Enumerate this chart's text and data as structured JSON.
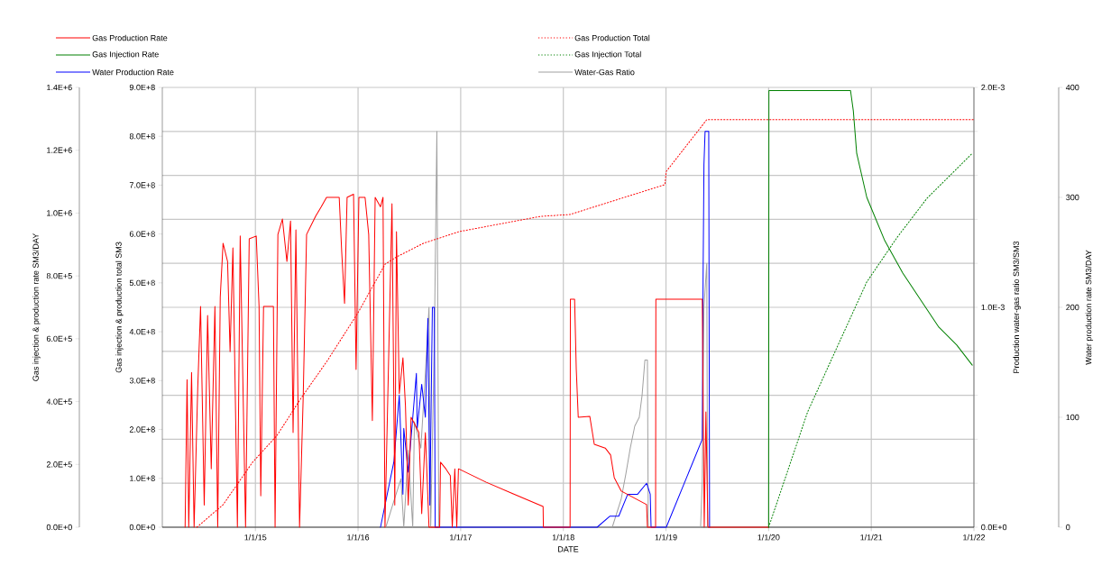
{
  "chart_data": [
    {
      "type": "line",
      "xlabel": "DATE",
      "ylabel": "Gas injection & production rate  SM3/DAY",
      "y2label": "Gas injection & production total  SM3",
      "xlim": [
        "2014-02-04",
        "2022-01-01"
      ],
      "xticks": [
        {
          "value": "2015-01-01",
          "label": "1/1/15"
        },
        {
          "value": "2016-01-01",
          "label": "1/1/16"
        },
        {
          "value": "2017-01-01",
          "label": "1/1/17"
        },
        {
          "value": "2018-01-01",
          "label": "1/1/18"
        },
        {
          "value": "2019-01-01",
          "label": "1/1/19"
        },
        {
          "value": "2020-01-01",
          "label": "1/1/20"
        },
        {
          "value": "2021-01-01",
          "label": "1/1/21"
        },
        {
          "value": "2022-01-01",
          "label": "1/1/22"
        }
      ],
      "ylim": [
        0,
        1400000
      ],
      "yticks": [
        {
          "value": 0,
          "label": "0.0E+0"
        },
        {
          "value": 200000,
          "label": "2.0E+5"
        },
        {
          "value": 400000,
          "label": "4.0E+5"
        },
        {
          "value": 600000,
          "label": "6.0E+5"
        },
        {
          "value": 800000,
          "label": "8.0E+5"
        },
        {
          "value": 1000000,
          "label": "1.0E+6"
        },
        {
          "value": 1200000,
          "label": "1.2E+6"
        },
        {
          "value": 1400000,
          "label": "1.4E+6"
        }
      ],
      "y2lim": [
        0,
        900000000
      ],
      "y2ticks": [
        {
          "value": 0,
          "label": "0.0E+0"
        },
        {
          "value": 100000000,
          "label": "1.0E+8"
        },
        {
          "value": 200000000,
          "label": "2.0E+8"
        },
        {
          "value": 300000000,
          "label": "3.0E+8"
        },
        {
          "value": 400000000,
          "label": "4.0E+8"
        },
        {
          "value": 500000000,
          "label": "5.0E+8"
        },
        {
          "value": 600000000,
          "label": "6.0E+8"
        },
        {
          "value": 700000000,
          "label": "7.0E+8"
        },
        {
          "value": 800000000,
          "label": "8.0E+8"
        },
        {
          "value": 900000000,
          "label": "9.0E+8"
        }
      ],
      "legend": "top",
      "series": [
        {
          "name": "Gas Production Rate",
          "color": "#ff0000",
          "line_style": "solid",
          "x": [
            "2014-04-26",
            "2014-05-03",
            "2014-05-09",
            "2014-05-19",
            "2014-05-28",
            "2014-06-10",
            "2014-06-20",
            "2014-07-03",
            "2014-07-15",
            "2014-07-28",
            "2014-08-10",
            "2014-08-20",
            "2014-08-29",
            "2014-09-08",
            "2014-09-24",
            "2014-10-03",
            "2014-10-13",
            "2014-10-29",
            "2014-11-08",
            "2014-11-27",
            "2014-12-10",
            "2015-01-04",
            "2015-01-14",
            "2015-01-20",
            "2015-01-30",
            "2015-03-06",
            "2015-03-12",
            "2015-03-22",
            "2015-04-07",
            "2015-04-23",
            "2015-05-06",
            "2015-05-15",
            "2015-05-25",
            "2015-06-07",
            "2015-06-20",
            "2015-07-02",
            "2015-08-03",
            "2015-08-23",
            "2015-09-11",
            "2015-10-26",
            "2015-11-04",
            "2015-11-14",
            "2015-11-23",
            "2015-12-16",
            "2015-12-25",
            "2016-01-04",
            "2016-01-26",
            "2016-02-08",
            "2016-02-21",
            "2016-03-02",
            "2016-03-21",
            "2016-03-30",
            "2016-04-06",
            "2016-05-01",
            "2016-05-11",
            "2016-05-17",
            "2016-05-27",
            "2016-06-09",
            "2016-06-18",
            "2016-06-28",
            "2016-07-08",
            "2016-07-20",
            "2016-08-05",
            "2016-08-15",
            "2016-08-28",
            "2016-09-10",
            "2016-10-18",
            "2016-10-21",
            "2016-11-09",
            "2016-11-25",
            "2016-12-02",
            "2016-12-11",
            "2016-12-18",
            "2016-12-24",
            "2017-04-02",
            "2017-07-07",
            "2017-10-21",
            "2017-10-22",
            "2018-01-25",
            "2018-01-26",
            "2018-02-10",
            "2018-02-16",
            "2018-02-23",
            "2018-04-05",
            "2018-04-21",
            "2018-05-30",
            "2018-06-18",
            "2018-07-01",
            "2018-07-26",
            "2018-10-24",
            "2018-10-27",
            "2018-11-25",
            "2018-11-26",
            "2019-05-10",
            "2019-05-17",
            "2019-05-23",
            "2019-05-30",
            "2020-01-01"
          ],
          "values": [
            0,
            470000,
            0,
            493000,
            0,
            445000,
            703000,
            70000,
            674000,
            186000,
            703000,
            0,
            732000,
            904000,
            846000,
            559000,
            889000,
            0,
            927000,
            0,
            918000,
            927000,
            703000,
            100000,
            703000,
            703000,
            0,
            932000,
            981000,
            846000,
            975000,
            301000,
            947000,
            0,
            416000,
            932000,
            990000,
            1020000,
            1050000,
            1050000,
            875000,
            712000,
            1050000,
            1060000,
            502000,
            1050000,
            1050000,
            932000,
            339000,
            1050000,
            1020000,
            1050000,
            0,
            1030000,
            70000,
            941000,
            425000,
            539000,
            387000,
            70000,
            350000,
            330000,
            301000,
            43000,
            301000,
            0,
            0,
            207000,
            186000,
            164000,
            0,
            186000,
            0,
            186000,
            143000,
            106000,
            66000,
            0,
            0,
            726000,
            726000,
            502000,
            350000,
            353000,
            264000,
            252000,
            230000,
            158000,
            115000,
            72000,
            0,
            0,
            726000,
            726000,
            0,
            367000,
            0,
            0
          ]
        },
        {
          "name": "Gas Injection Rate",
          "color": "#008000",
          "line_style": "solid",
          "x": [
            "2020-01-01",
            "2020-01-02",
            "2020-10-19",
            "2020-10-29",
            "2020-11-10",
            "2020-12-16",
            "2021-02-18",
            "2021-04-23",
            "2021-06-26",
            "2021-08-29",
            "2021-11-01",
            "2021-12-26"
          ],
          "values": [
            0,
            1390000,
            1390000,
            1325000,
            1190000,
            1050000,
            912000,
            809000,
            723000,
            637000,
            580000,
            516000
          ]
        },
        {
          "name": "Gas Production Total",
          "color": "#ff0000",
          "line_style": "dotted",
          "axis": "y2",
          "x": [
            "2014-06-07",
            "2014-09-08",
            "2014-12-22",
            "2015-03-19",
            "2015-06-10",
            "2015-09-14",
            "2016-01-01",
            "2016-04-06",
            "2016-05-17",
            "2016-08-21",
            "2016-12-27",
            "2017-10-11",
            "2018-01-25",
            "2018-12-28",
            "2019-01-02",
            "2019-05-26",
            "2022-01-01"
          ],
          "values": [
            0,
            46000000,
            133000000,
            188000000,
            262000000,
            341000000,
            439000000,
            538000000,
            553000000,
            581000000,
            605000000,
            636000000,
            640000000,
            701000000,
            728000000,
            834000000,
            834000000
          ]
        },
        {
          "name": "Gas Injection Total",
          "color": "#008000",
          "line_style": "dotted",
          "axis": "y2",
          "x": [
            "2020-01-01",
            "2020-05-19",
            "2020-12-16",
            "2021-04-04",
            "2021-07-18",
            "2021-12-26"
          ],
          "values": [
            0,
            236000000,
            502000000,
            594000000,
            673000000,
            765000000
          ]
        }
      ]
    },
    {
      "type": "line",
      "ylabel": "Production water-gas ratio  SM3/SM3",
      "y2label": "Water production rate  SM3/DAY",
      "xlim": [
        "2014-02-04",
        "2022-01-01"
      ],
      "xticks": [
        {
          "value": "2015-01-01",
          "label": null
        },
        {
          "value": "2016-01-01",
          "label": null
        },
        {
          "value": "2017-01-01",
          "label": null
        },
        {
          "value": "2018-01-01",
          "label": null
        },
        {
          "value": "2019-01-01",
          "label": null
        },
        {
          "value": "2020-01-01",
          "label": null
        },
        {
          "value": "2021-01-01",
          "label": null
        },
        {
          "value": "2022-01-01",
          "label": null
        }
      ],
      "tick_labels": "y",
      "ylim": [
        0,
        0.002
      ],
      "yticks": [
        {
          "value": 0,
          "label": "0.0E+0"
        },
        {
          "value": 0.0002,
          "label": null
        },
        {
          "value": 0.0004,
          "label": null
        },
        {
          "value": 0.0006,
          "label": null
        },
        {
          "value": 0.0008,
          "label": null
        },
        {
          "value": 0.001,
          "label": "1.0E-3"
        },
        {
          "value": 0.0012,
          "label": null
        },
        {
          "value": 0.0014,
          "label": null
        },
        {
          "value": 0.0016,
          "label": null
        },
        {
          "value": 0.0018,
          "label": null
        },
        {
          "value": 0.002,
          "label": "2.0E-3"
        }
      ],
      "y2lim": [
        0,
        400
      ],
      "y2ticks": [
        0,
        100,
        200,
        300,
        400
      ],
      "grid": true,
      "legend": "top",
      "series": [
        {
          "name": "Water Production Rate",
          "color": "#0000ff",
          "line_style": "solid",
          "axis": "y2",
          "x": [
            "2016-03-21",
            "2016-04-06",
            "2016-05-08",
            "2016-05-27",
            "2016-06-09",
            "2016-06-12",
            "2016-06-28",
            "2016-07-27",
            "2016-07-30",
            "2016-08-15",
            "2016-08-28",
            "2016-09-06",
            "2016-09-13",
            "2016-09-22",
            "2016-09-29",
            "2016-10-02",
            "2018-05-01",
            "2018-06-15",
            "2018-07-17",
            "2018-08-18",
            "2018-09-22",
            "2018-10-24",
            "2018-11-06",
            "2018-11-09",
            "2019-01-02",
            "2019-05-10",
            "2019-05-13",
            "2019-05-16",
            "2019-05-20",
            "2019-06-02",
            "2019-06-05"
          ],
          "values": [
            0,
            20,
            60,
            120,
            30,
            90,
            50,
            140,
            90,
            130,
            100,
            190,
            20,
            200,
            200,
            0,
            0,
            10,
            10,
            30,
            30,
            40,
            30,
            0,
            0,
            80,
            230,
            330,
            360,
            360,
            0
          ]
        },
        {
          "name": "Water-Gas Ratio",
          "color": "#a0a0a0",
          "line_style": "solid",
          "x": [
            "2016-04-09",
            "2016-05-08",
            "2016-06-02",
            "2016-06-12",
            "2016-06-28",
            "2016-07-14",
            "2016-07-20",
            "2016-08-12",
            "2016-08-28",
            "2016-09-10",
            "2016-09-16",
            "2016-09-29",
            "2016-10-08",
            "2016-10-15",
            "2018-05-07",
            "2018-06-24",
            "2018-07-26",
            "2018-08-11",
            "2018-08-27",
            "2018-09-12",
            "2018-09-28",
            "2018-10-08",
            "2018-10-18",
            "2018-10-27",
            "2018-10-30",
            "2019-05-04",
            "2019-05-10",
            "2019-05-16",
            "2019-05-26",
            "2019-05-29"
          ],
          "values": [
            0,
            0.00012,
            0.00022,
            0,
            0.00035,
            0,
            0.00048,
            0.00036,
            0.0007,
            0.001,
            0,
            0.00084,
            0.0018,
            0,
            0,
            0,
            0.00013,
            0.00024,
            0.00036,
            0.00046,
            0.0005,
            0.0006,
            0.00076,
            0.00076,
            0,
            0,
            0.00021,
            0.001,
            0.0012,
            0
          ]
        }
      ]
    }
  ]
}
